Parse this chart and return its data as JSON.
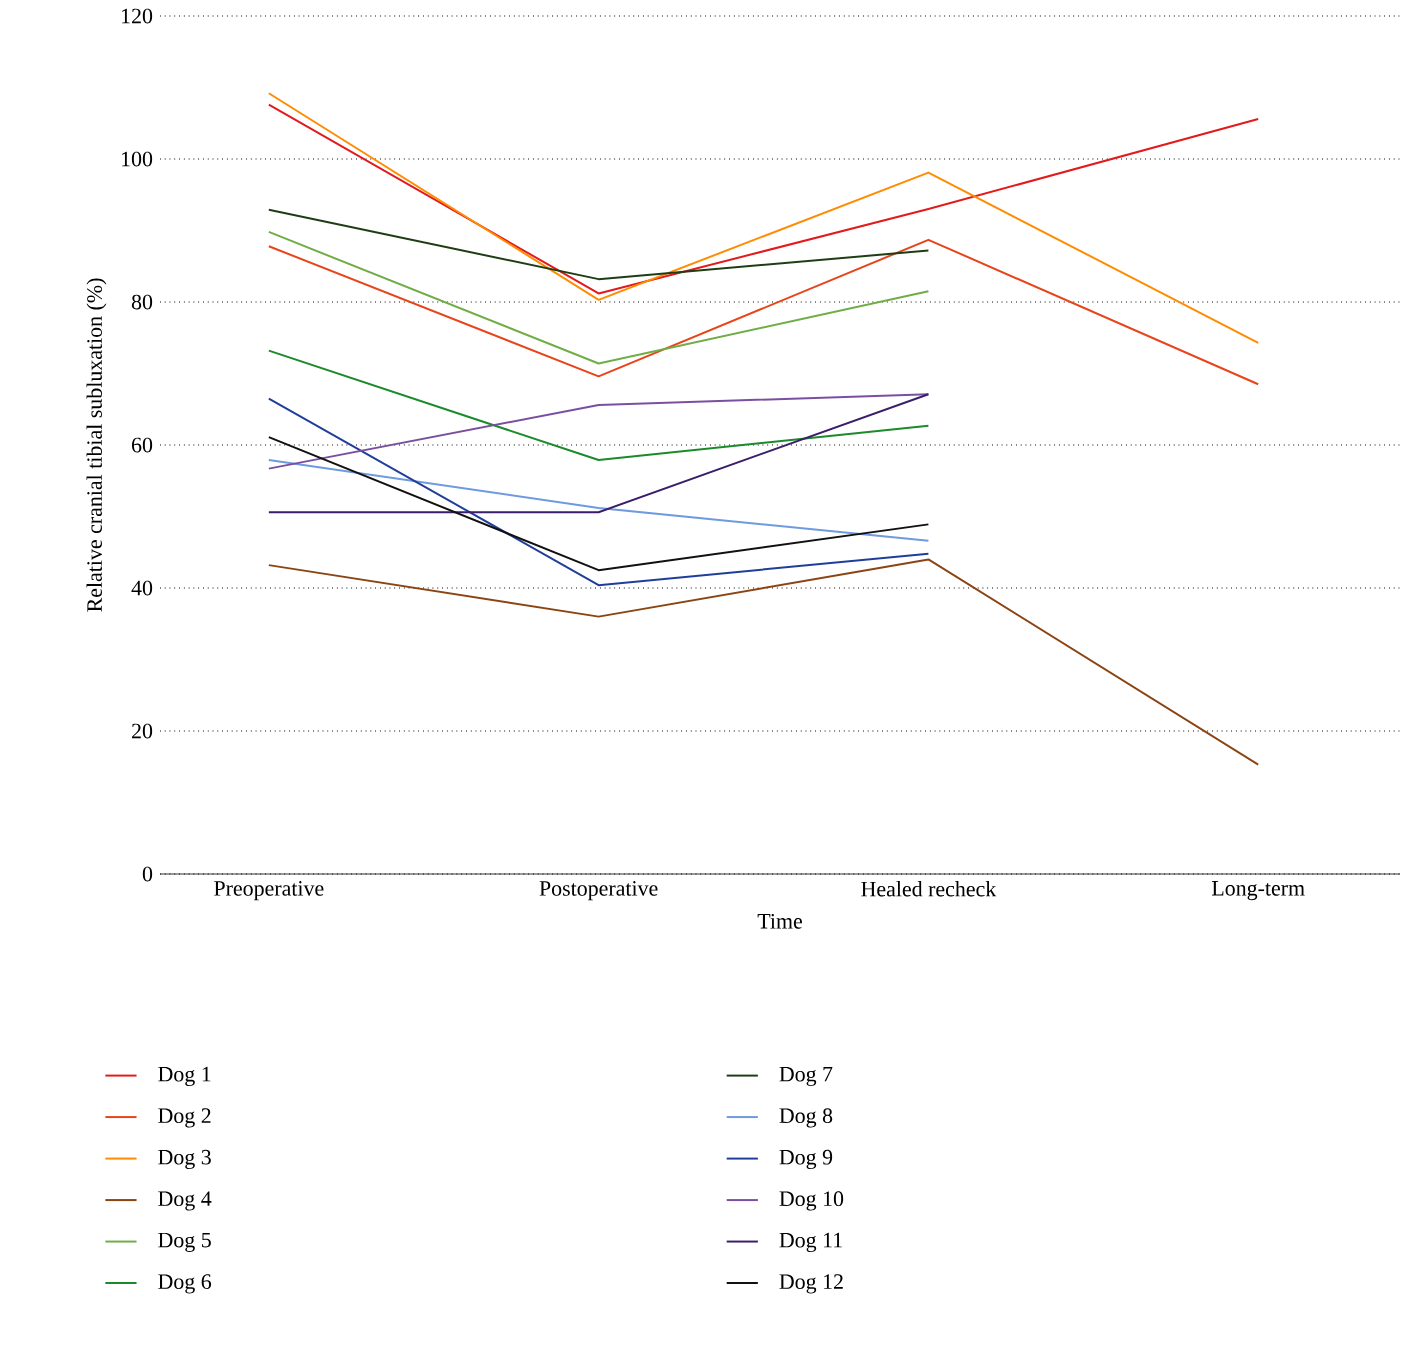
{
  "chart_data": {
    "type": "line",
    "xlabel": "Time",
    "ylabel": "Relative cranial tibial subluxation (%)",
    "categories": [
      "Preoperative",
      "Postoperative",
      "Healed recheck",
      "Long-term"
    ],
    "ylim": [
      0,
      120
    ],
    "yticks": [
      0,
      20,
      40,
      60,
      80,
      100,
      120
    ],
    "grid": "y",
    "legend": "bottom",
    "marker": "none",
    "line_style": "solid",
    "series": [
      {
        "name": "Dog 1",
        "color": "#e31a1c",
        "values": [
          107.6,
          81.2,
          93.0,
          105.6
        ]
      },
      {
        "name": "Dog 2",
        "color": "#e8441a",
        "values": [
          87.8,
          69.6,
          88.7,
          68.5
        ]
      },
      {
        "name": "Dog 3",
        "color": "#ff8c00",
        "values": [
          109.2,
          80.3,
          98.1,
          74.3
        ]
      },
      {
        "name": "Dog 4",
        "color": "#8b4513",
        "values": [
          43.2,
          36.0,
          44.0,
          15.3
        ]
      },
      {
        "name": "Dog 5",
        "color": "#70ad47",
        "values": [
          89.8,
          71.4,
          81.5,
          null
        ]
      },
      {
        "name": "Dog 6",
        "color": "#1a8a2a",
        "values": [
          73.2,
          57.9,
          62.7,
          null
        ]
      },
      {
        "name": "Dog 7",
        "color": "#1e3d14",
        "values": [
          92.9,
          83.2,
          87.2,
          null
        ]
      },
      {
        "name": "Dog 8",
        "color": "#6f9ae0",
        "values": [
          57.9,
          51.2,
          46.6,
          null
        ]
      },
      {
        "name": "Dog 9",
        "color": "#1f3e99",
        "values": [
          66.5,
          40.4,
          44.8,
          null
        ]
      },
      {
        "name": "Dog 10",
        "color": "#7b4fa0",
        "values": [
          56.7,
          65.6,
          67.1,
          null
        ]
      },
      {
        "name": "Dog 11",
        "color": "#3b1e6b",
        "values": [
          50.6,
          50.6,
          67.1,
          null
        ]
      },
      {
        "name": "Dog 12",
        "color": "#111111",
        "values": [
          61.1,
          42.5,
          48.9,
          null
        ]
      }
    ]
  }
}
